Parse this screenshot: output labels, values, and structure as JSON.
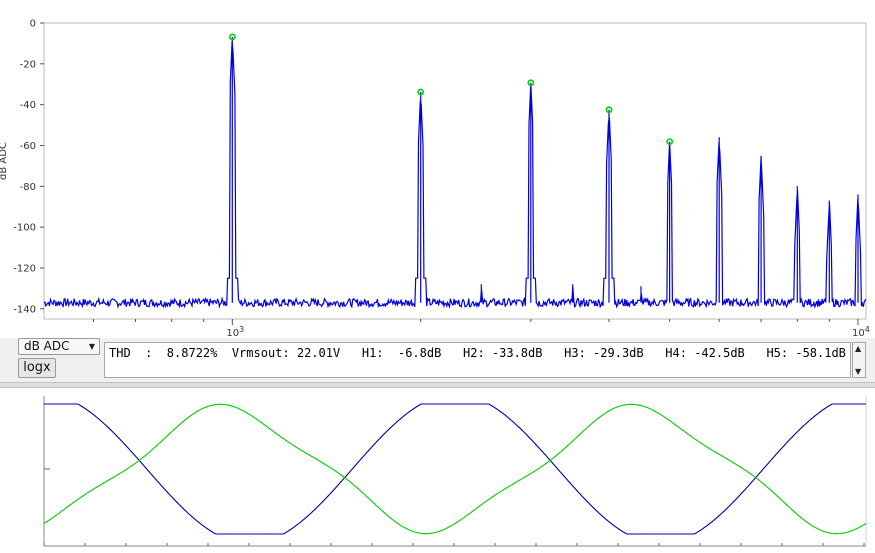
{
  "spectrum": {
    "ylabel": "dB ADC",
    "y_ticks": [
      "0",
      "-20",
      "-40",
      "-60",
      "-80",
      "-100",
      "-120",
      "-140"
    ],
    "x_ticks": [
      {
        "base": "10",
        "exp": "3"
      },
      {
        "base": "10",
        "exp": "4"
      }
    ]
  },
  "chart_data": [
    {
      "type": "line",
      "xscale": "log",
      "ylabel": "dB ADC",
      "xlim": [
        500,
        10300
      ],
      "ylim": [
        -145,
        0
      ],
      "grid": false,
      "noise_floor_db": -137,
      "peaks": [
        {
          "x": 1000,
          "y": -6.8,
          "marked": true
        },
        {
          "x": 2000,
          "y": -33.8,
          "marked": true
        },
        {
          "x": 3000,
          "y": -29.3,
          "marked": true
        },
        {
          "x": 4000,
          "y": -42.5,
          "marked": true
        },
        {
          "x": 5000,
          "y": -58.1,
          "marked": true
        },
        {
          "x": 6000,
          "y": -56
        },
        {
          "x": 7000,
          "y": -65
        },
        {
          "x": 8000,
          "y": -80
        },
        {
          "x": 9000,
          "y": -87
        },
        {
          "x": 10000,
          "y": -84
        },
        {
          "x": 2500,
          "y": -128
        },
        {
          "x": 3500,
          "y": -128
        },
        {
          "x": 4500,
          "y": -129
        }
      ],
      "colors": {
        "trace": "#0000e0",
        "marker": "#00d000"
      }
    },
    {
      "type": "line",
      "series": [
        {
          "color": "#0000aa",
          "wave": "fundamental"
        },
        {
          "color": "#00cc00",
          "wave": "distorted"
        }
      ]
    }
  ],
  "controls": {
    "mode_value": "dB ADC",
    "logx_label": "logx",
    "thd_text": "THD  :  8.8722%  Vrmsout: 22.01V   H1:  -6.8dB   H2: -33.8dB   H3: -29.3dB   H4: -42.5dB   H5: -58.1dB"
  },
  "colors": {
    "accent_trace": "#0000e0",
    "marker": "#00d000",
    "panel_bg": "#efefef"
  }
}
